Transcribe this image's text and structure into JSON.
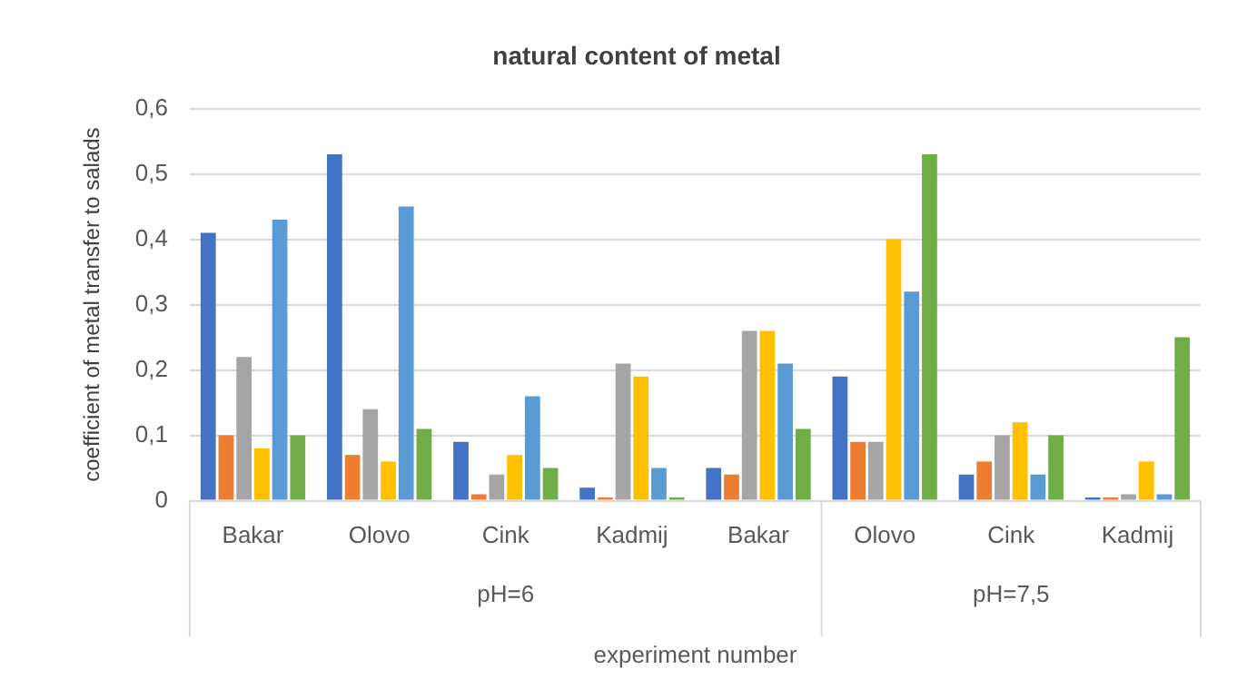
{
  "chart_data": {
    "type": "bar",
    "title": "natural content of metal",
    "xlabel": "experiment number",
    "ylabel": "coefficient of metal transfer to salads",
    "categories": [
      "Bakar",
      "Olovo",
      "Cink",
      "Kadmij",
      "Bakar",
      "Olovo",
      "Cink",
      "Kadmij"
    ],
    "series": [
      {
        "color": "#4472c4",
        "values": [
          0.41,
          0.53,
          0.09,
          0.02,
          0.05,
          0.19,
          0.04,
          0.005
        ]
      },
      {
        "color": "#ed7d31",
        "values": [
          0.1,
          0.07,
          0.01,
          0.005,
          0.04,
          0.09,
          0.06,
          0.005
        ]
      },
      {
        "color": "#a5a5a5",
        "values": [
          0.22,
          0.14,
          0.04,
          0.21,
          0.26,
          0.09,
          0.1,
          0.01
        ]
      },
      {
        "color": "#ffc000",
        "values": [
          0.08,
          0.06,
          0.07,
          0.19,
          0.26,
          0.4,
          0.12,
          0.06
        ]
      },
      {
        "color": "#5b9bd5",
        "values": [
          0.43,
          0.45,
          0.16,
          0.05,
          0.21,
          0.32,
          0.04,
          0.01
        ]
      },
      {
        "color": "#70ad47",
        "values": [
          0.1,
          0.11,
          0.05,
          0.005,
          0.11,
          0.53,
          0.1,
          0.25
        ]
      }
    ],
    "ylim": [
      0,
      0.6
    ],
    "yticks": [
      {
        "value": 0,
        "label": "0"
      },
      {
        "value": 0.1,
        "label": "0,1"
      },
      {
        "value": 0.2,
        "label": "0,2"
      },
      {
        "value": 0.3,
        "label": "0,3"
      },
      {
        "value": 0.4,
        "label": "0,4"
      },
      {
        "value": 0.5,
        "label": "0,5"
      },
      {
        "value": 0.6,
        "label": "0,6"
      }
    ],
    "grid": "y",
    "annotations": [
      "pH=6",
      "pH=7,5"
    ]
  }
}
